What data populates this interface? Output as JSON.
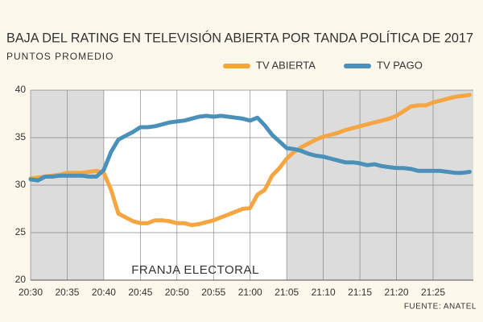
{
  "chart_data": {
    "type": "line",
    "title": "BAJA DEL RATING EN TELEVISIÓN  ABIERTA POR TANDA POLÍTICA DE 2017",
    "subtitle": "PUNTOS PROMEDIO",
    "source": "FUENTE: ANATEL",
    "annotation": {
      "text": "FRANJA ELECTORAL",
      "xrange": [
        1240,
        1265
      ]
    },
    "x": [
      1230,
      1231,
      1232,
      1233,
      1234,
      1235,
      1236,
      1237,
      1238,
      1239,
      1240,
      1241,
      1242,
      1243,
      1244,
      1245,
      1246,
      1247,
      1248,
      1249,
      1250,
      1251,
      1252,
      1253,
      1254,
      1255,
      1256,
      1257,
      1258,
      1259,
      1260,
      1261,
      1262,
      1263,
      1264,
      1265,
      1266,
      1267,
      1268,
      1269,
      1270,
      1271,
      1272,
      1273,
      1274,
      1275,
      1276,
      1277,
      1278,
      1279,
      1280,
      1281,
      1282,
      1283,
      1284,
      1285,
      1286,
      1287,
      1288,
      1289,
      1290
    ],
    "series": [
      {
        "name": "TV ABIERTA",
        "color": "#f5a642",
        "values": [
          30.7,
          30.8,
          30.9,
          31.0,
          31.1,
          31.3,
          31.3,
          31.3,
          31.4,
          31.5,
          31.3,
          29.5,
          27.0,
          26.6,
          26.2,
          26.0,
          26.0,
          26.3,
          26.3,
          26.2,
          26.0,
          26.0,
          25.8,
          25.9,
          26.1,
          26.3,
          26.6,
          26.9,
          27.2,
          27.5,
          27.6,
          29.0,
          29.5,
          31.0,
          31.8,
          32.8,
          33.5,
          34.0,
          34.4,
          34.8,
          35.1,
          35.3,
          35.5,
          35.8,
          36.0,
          36.2,
          36.4,
          36.6,
          36.8,
          37.0,
          37.3,
          37.8,
          38.3,
          38.4,
          38.4,
          38.7,
          38.9,
          39.1,
          39.3,
          39.4,
          39.5
        ]
      },
      {
        "name": "TV PAGO",
        "color": "#4a90b8",
        "values": [
          30.6,
          30.5,
          30.9,
          30.9,
          31.0,
          31.0,
          31.0,
          31.0,
          30.9,
          30.9,
          31.6,
          33.5,
          34.8,
          35.2,
          35.6,
          36.1,
          36.1,
          36.2,
          36.4,
          36.6,
          36.7,
          36.8,
          37.0,
          37.2,
          37.3,
          37.2,
          37.3,
          37.2,
          37.1,
          37.0,
          36.8,
          37.1,
          36.3,
          35.3,
          34.6,
          33.9,
          33.8,
          33.6,
          33.3,
          33.1,
          33.0,
          32.8,
          32.6,
          32.4,
          32.4,
          32.3,
          32.1,
          32.2,
          32.0,
          31.9,
          31.8,
          31.8,
          31.7,
          31.5,
          31.5,
          31.5,
          31.5,
          31.4,
          31.3,
          31.3,
          31.4
        ]
      }
    ],
    "xlim": [
      1230,
      1290.5
    ],
    "xticks": [
      {
        "value": 1230,
        "label": "20:30"
      },
      {
        "value": 1235,
        "label": "20:35"
      },
      {
        "value": 1240,
        "label": "20:40"
      },
      {
        "value": 1245,
        "label": "20:45"
      },
      {
        "value": 1250,
        "label": "20:50"
      },
      {
        "value": 1255,
        "label": "20:55"
      },
      {
        "value": 1260,
        "label": "21:00"
      },
      {
        "value": 1265,
        "label": "21:05"
      },
      {
        "value": 1270,
        "label": "21:10"
      },
      {
        "value": 1275,
        "label": "21:15"
      },
      {
        "value": 1280,
        "label": "21:20"
      },
      {
        "value": 1285,
        "label": "21:25"
      }
    ],
    "ylim": [
      20,
      40
    ],
    "yticks": [
      20,
      25,
      30,
      35,
      40
    ],
    "grid": true
  }
}
